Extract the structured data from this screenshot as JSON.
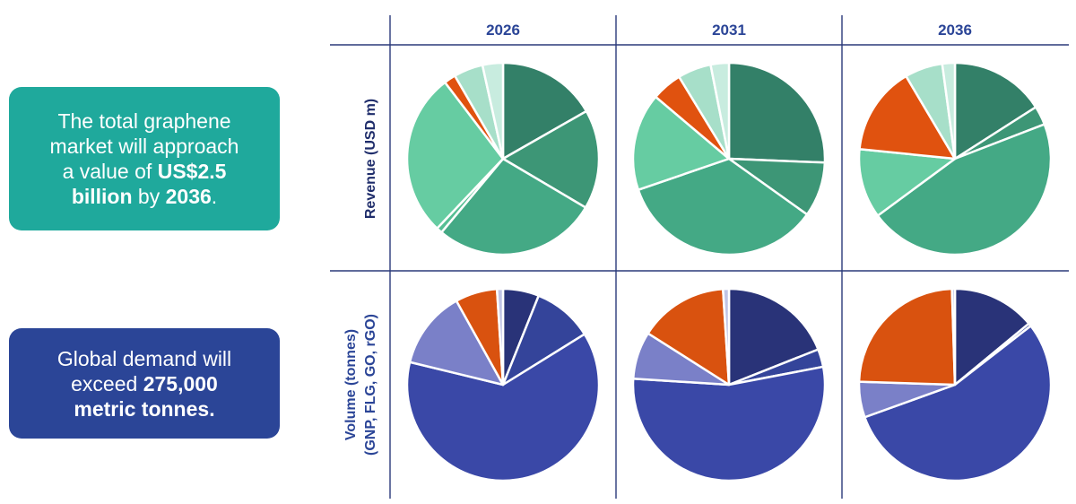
{
  "callouts": {
    "revenue": {
      "line1": "The total graphene",
      "line2": "market will approach",
      "line3_pre": "a value of ",
      "amount": "US$2.5",
      "line4_bold": "billion",
      "line4_mid": " by ",
      "year": "2036",
      "line4_end": "."
    },
    "volume": {
      "line1": "Global demand will",
      "line2_pre": "exceed ",
      "amount": "275,000",
      "line3": "metric tonnes."
    }
  },
  "colors": {
    "revenue_callout": "#1fa99c",
    "volume_callout": "#2b4597",
    "axis_text": "#2b4597",
    "revenue_label": "#1f2d6b"
  },
  "chart_data": {
    "type": "pie",
    "columns": [
      "2026",
      "2031",
      "2036"
    ],
    "rows": [
      {
        "id": "revenue",
        "label": "Revenue (USD m)",
        "segment_colors": [
          "#338068",
          "#3d9676",
          "#44a985",
          "#55be93",
          "#66cca2",
          "#e0520f",
          "#a7dfc9",
          "#c8ecdf"
        ],
        "pies": [
          {
            "year": "2026",
            "shares": [
              17,
              17,
              28,
              1,
              28,
              2,
              5,
              3.5
            ]
          },
          {
            "year": "2031",
            "shares": [
              25,
              9,
              34,
              0,
              16,
              5,
              5.5,
              3
            ]
          },
          {
            "year": "2036",
            "shares": [
              15,
              3,
              43,
              0,
              11,
              14,
              6,
              2
            ]
          }
        ]
      },
      {
        "id": "volume",
        "label_line1": "Volume (tonnes)",
        "label_line2": "(GNP, FLG, GO, rGO)",
        "segment_colors": [
          "#293378",
          "#34449a",
          "#3a48a7",
          "#7a80c8",
          "#d9520f",
          "#c0c4e5"
        ],
        "pies": [
          {
            "year": "2026",
            "shares": [
              6,
              10,
              62,
              13,
              7,
              1
            ]
          },
          {
            "year": "2031",
            "shares": [
              19,
              3,
              54,
              8,
              15,
              1
            ]
          },
          {
            "year": "2036",
            "shares": [
              14,
              0.5,
              55,
              6,
              24,
              0.5
            ]
          }
        ]
      }
    ]
  }
}
